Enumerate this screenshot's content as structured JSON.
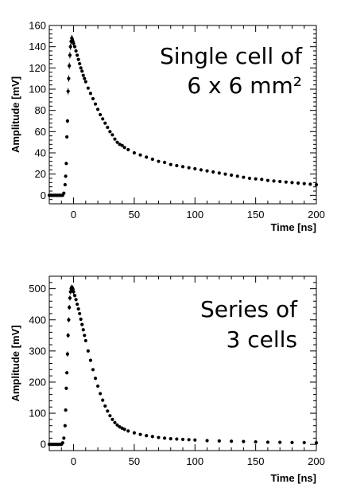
{
  "chart_data": [
    {
      "type": "scatter",
      "xlabel": "Time [ns]",
      "ylabel": "Amplitude [mV]",
      "xlim": [
        -20,
        200
      ],
      "ylim": [
        -8,
        160
      ],
      "xticks": [
        0,
        50,
        100,
        150,
        200
      ],
      "yticks": [
        0,
        20,
        40,
        60,
        80,
        100,
        120,
        140,
        160
      ],
      "annotation_lines": [
        "Single cell of",
        "6 x 6 mm²"
      ],
      "grid": false,
      "marker_color": "#000000",
      "points": [
        [
          -20,
          0
        ],
        [
          -19,
          0
        ],
        [
          -18,
          0
        ],
        [
          -17,
          0
        ],
        [
          -16,
          0
        ],
        [
          -15,
          0
        ],
        [
          -14,
          0
        ],
        [
          -13,
          0
        ],
        [
          -12,
          0
        ],
        [
          -11,
          0
        ],
        [
          -10,
          0
        ],
        [
          -9,
          0
        ],
        [
          -8,
          2
        ],
        [
          -7,
          10
        ],
        [
          -6.5,
          18
        ],
        [
          -6,
          30
        ],
        [
          -5.5,
          55
        ],
        [
          -5,
          70
        ],
        [
          -4.5,
          98
        ],
        [
          -4,
          110
        ],
        [
          -3.5,
          122
        ],
        [
          -3,
          132
        ],
        [
          -2.5,
          140
        ],
        [
          -2,
          145
        ],
        [
          -1.5,
          148
        ],
        [
          -1,
          147
        ],
        [
          -0.5,
          145
        ],
        [
          0,
          143
        ],
        [
          1,
          140
        ],
        [
          2,
          136
        ],
        [
          3,
          132
        ],
        [
          4,
          128
        ],
        [
          5,
          124
        ],
        [
          6,
          120
        ],
        [
          7,
          117
        ],
        [
          8,
          113
        ],
        [
          9,
          110
        ],
        [
          10,
          107
        ],
        [
          12,
          101
        ],
        [
          14,
          96
        ],
        [
          16,
          91
        ],
        [
          18,
          86
        ],
        [
          20,
          81
        ],
        [
          22,
          76
        ],
        [
          24,
          72
        ],
        [
          26,
          68
        ],
        [
          28,
          64
        ],
        [
          30,
          60
        ],
        [
          32,
          57
        ],
        [
          34,
          53
        ],
        [
          36,
          50
        ],
        [
          38,
          48
        ],
        [
          40,
          47
        ],
        [
          42,
          45
        ],
        [
          45,
          43
        ],
        [
          50,
          40
        ],
        [
          55,
          38
        ],
        [
          60,
          36
        ],
        [
          65,
          34
        ],
        [
          70,
          32
        ],
        [
          75,
          31
        ],
        [
          80,
          29
        ],
        [
          85,
          28
        ],
        [
          90,
          27
        ],
        [
          95,
          26
        ],
        [
          100,
          25
        ],
        [
          105,
          24
        ],
        [
          110,
          23
        ],
        [
          115,
          22
        ],
        [
          120,
          21
        ],
        [
          125,
          20
        ],
        [
          130,
          19
        ],
        [
          135,
          18
        ],
        [
          140,
          17
        ],
        [
          145,
          16
        ],
        [
          150,
          15.5
        ],
        [
          155,
          15
        ],
        [
          160,
          14
        ],
        [
          165,
          13.5
        ],
        [
          170,
          13
        ],
        [
          175,
          12.5
        ],
        [
          180,
          12
        ],
        [
          185,
          11.5
        ],
        [
          190,
          11
        ],
        [
          195,
          10.5
        ],
        [
          200,
          10
        ]
      ],
      "error_bars": [
        [
          -5,
          70,
          2
        ],
        [
          -4.5,
          98,
          3
        ],
        [
          -4,
          110,
          3
        ],
        [
          -3.5,
          122,
          3
        ],
        [
          -3,
          132,
          3
        ],
        [
          -2.5,
          140,
          3
        ],
        [
          -2,
          145,
          3
        ],
        [
          -1.5,
          148,
          3
        ],
        [
          -1,
          147,
          3
        ],
        [
          -0.5,
          145,
          3
        ],
        [
          0,
          143,
          3
        ]
      ]
    },
    {
      "type": "scatter",
      "xlabel": "Time [ns]",
      "ylabel": "Amplitude [mV]",
      "xlim": [
        -20,
        200
      ],
      "ylim": [
        -20,
        540
      ],
      "xticks": [
        0,
        50,
        100,
        150,
        200
      ],
      "yticks": [
        0,
        100,
        200,
        300,
        400,
        500
      ],
      "annotation_lines": [
        "Series of",
        "3 cells"
      ],
      "grid": false,
      "marker_color": "#000000",
      "points": [
        [
          -20,
          0
        ],
        [
          -19,
          0
        ],
        [
          -18,
          0
        ],
        [
          -17,
          0
        ],
        [
          -16,
          0
        ],
        [
          -15,
          0
        ],
        [
          -14,
          0
        ],
        [
          -13,
          0
        ],
        [
          -12,
          0
        ],
        [
          -11,
          0
        ],
        [
          -10,
          0
        ],
        [
          -9,
          5
        ],
        [
          -8,
          20
        ],
        [
          -7,
          60
        ],
        [
          -6.5,
          110
        ],
        [
          -6,
          180
        ],
        [
          -5.5,
          230
        ],
        [
          -5,
          290
        ],
        [
          -4.5,
          350
        ],
        [
          -4,
          400
        ],
        [
          -3.5,
          440
        ],
        [
          -3,
          470
        ],
        [
          -2.5,
          490
        ],
        [
          -2,
          500
        ],
        [
          -1.5,
          505
        ],
        [
          -1,
          503
        ],
        [
          -0.5,
          498
        ],
        [
          0,
          490
        ],
        [
          1,
          478
        ],
        [
          2,
          465
        ],
        [
          3,
          450
        ],
        [
          4,
          435
        ],
        [
          5,
          420
        ],
        [
          6,
          402
        ],
        [
          7,
          385
        ],
        [
          8,
          368
        ],
        [
          9,
          350
        ],
        [
          10,
          333
        ],
        [
          12,
          300
        ],
        [
          14,
          270
        ],
        [
          16,
          240
        ],
        [
          18,
          212
        ],
        [
          20,
          187
        ],
        [
          22,
          163
        ],
        [
          24,
          142
        ],
        [
          26,
          123
        ],
        [
          28,
          107
        ],
        [
          30,
          92
        ],
        [
          32,
          80
        ],
        [
          34,
          70
        ],
        [
          36,
          62
        ],
        [
          38,
          56
        ],
        [
          40,
          52
        ],
        [
          42,
          48
        ],
        [
          45,
          43
        ],
        [
          50,
          37
        ],
        [
          55,
          32
        ],
        [
          60,
          28
        ],
        [
          65,
          25
        ],
        [
          70,
          22
        ],
        [
          75,
          20
        ],
        [
          80,
          18
        ],
        [
          85,
          17
        ],
        [
          90,
          16
        ],
        [
          95,
          15
        ],
        [
          100,
          14
        ],
        [
          110,
          12
        ],
        [
          120,
          11
        ],
        [
          130,
          10
        ],
        [
          140,
          9
        ],
        [
          150,
          8
        ],
        [
          160,
          7
        ],
        [
          170,
          6.5
        ],
        [
          180,
          6
        ],
        [
          190,
          5.5
        ],
        [
          200,
          5
        ]
      ],
      "error_bars": [
        [
          -5,
          290,
          8
        ],
        [
          -4.5,
          350,
          8
        ],
        [
          -4,
          400,
          8
        ],
        [
          -3.5,
          440,
          8
        ],
        [
          -3,
          470,
          8
        ],
        [
          -2.5,
          490,
          8
        ],
        [
          -2,
          500,
          8
        ],
        [
          -1.5,
          505,
          8
        ],
        [
          -1,
          503,
          8
        ],
        [
          -0.5,
          498,
          8
        ],
        [
          0,
          490,
          8
        ]
      ]
    }
  ]
}
